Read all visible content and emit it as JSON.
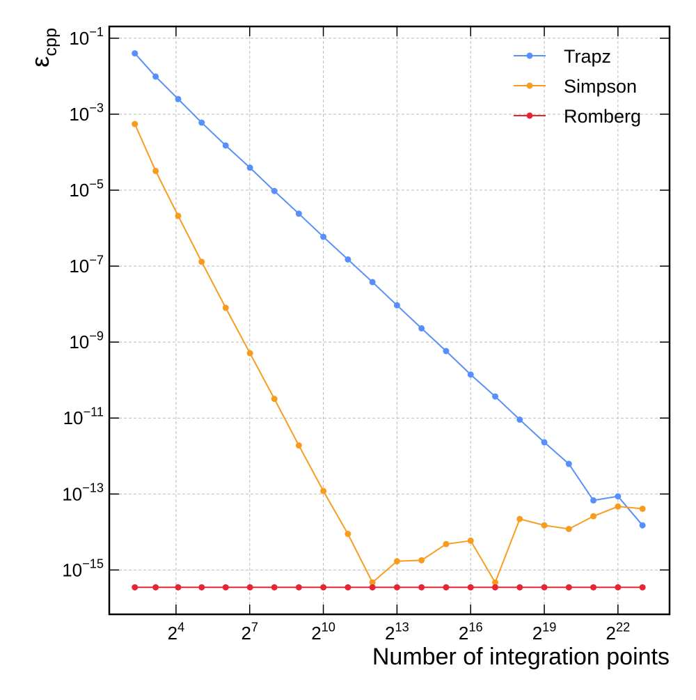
{
  "chart_data": {
    "type": "line",
    "x_label": "Number of integration points",
    "y_label": "ε_cpp",
    "x_log_base": 2,
    "y_log_base": 10,
    "x": [
      5,
      9,
      17,
      33,
      65,
      129,
      257,
      513,
      1025,
      2049,
      4097,
      8193,
      16385,
      32769,
      65537,
      131073,
      262145,
      524289,
      1048577,
      2097153,
      4194305,
      8388609
    ],
    "series": [
      {
        "name": "Trapz",
        "color": "#5790fc",
        "values": [
          0.04,
          0.0098,
          0.0025,
          0.0006,
          0.00015,
          3.9e-05,
          9.5e-06,
          2.4e-06,
          5.9e-07,
          1.5e-07,
          3.8e-08,
          9.3e-09,
          2.3e-09,
          5.8e-10,
          1.4e-10,
          3.7e-11,
          9.1e-12,
          2.3e-12,
          6.2e-13,
          6.8e-14,
          8.7e-14,
          1.5e-14
        ]
      },
      {
        "name": "Simpson",
        "color": "#f89c20",
        "values": [
          0.00055,
          3.2e-05,
          2.1e-06,
          1.3e-07,
          8e-09,
          5.1e-10,
          3.2e-11,
          1.9e-12,
          1.2e-13,
          8.9e-15,
          4.7e-16,
          1.7e-15,
          1.8e-15,
          4.8e-15,
          5.9e-15,
          4.7e-16,
          2.2e-14,
          1.5e-14,
          1.2e-14,
          2.6e-14,
          4.7e-14,
          4.1e-14
        ]
      },
      {
        "name": "Romberg",
        "color": "#e42536",
        "values": [
          3.5e-16,
          3.5e-16,
          3.5e-16,
          3.5e-16,
          3.5e-16,
          3.5e-16,
          3.5e-16,
          3.5e-16,
          3.5e-16,
          3.5e-16,
          3.5e-16,
          3.5e-16,
          3.5e-16,
          3.5e-16,
          3.5e-16,
          3.5e-16,
          3.5e-16,
          3.5e-16,
          3.5e-16,
          3.5e-16,
          3.5e-16,
          3.5e-16
        ]
      }
    ],
    "xlim": [
      2.43,
      18000000
    ],
    "ylim": [
      6.8e-17,
      0.204
    ],
    "xticks": [
      {
        "value": 16,
        "label": "2^4"
      },
      {
        "value": 128,
        "label": "2^7"
      },
      {
        "value": 1024,
        "label": "2^10"
      },
      {
        "value": 8192,
        "label": "2^13"
      },
      {
        "value": 65536,
        "label": "2^16"
      },
      {
        "value": 524288,
        "label": "2^19"
      },
      {
        "value": 4194304,
        "label": "2^22"
      }
    ],
    "yticks": [
      {
        "value": 0.1,
        "label": "10^−1"
      },
      {
        "value": 0.001,
        "label": "10^−3"
      },
      {
        "value": 1e-05,
        "label": "10^−5"
      },
      {
        "value": 1e-07,
        "label": "10^−7"
      },
      {
        "value": 1e-09,
        "label": "10^−9"
      },
      {
        "value": 1e-11,
        "label": "10^−11"
      },
      {
        "value": 1e-13,
        "label": "10^−13"
      },
      {
        "value": 1e-15,
        "label": "10^−15"
      }
    ],
    "grid": true,
    "legend": "upper right"
  }
}
